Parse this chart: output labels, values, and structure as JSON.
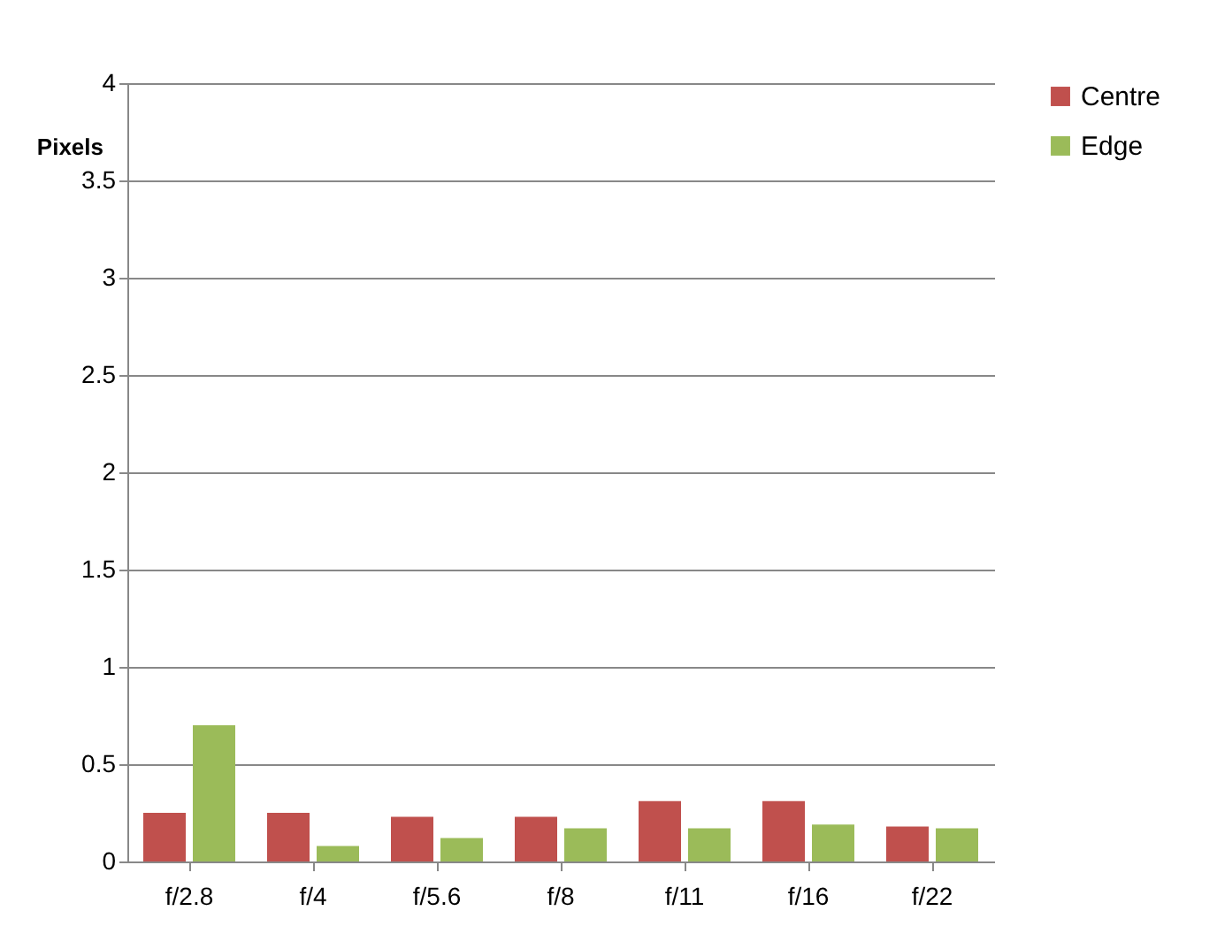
{
  "chart_data": {
    "type": "bar",
    "ylabel": "Pixels",
    "categories": [
      "f/2.8",
      "f/4",
      "f/5.6",
      "f/8",
      "f/11",
      "f/16",
      "f/22"
    ],
    "series": [
      {
        "name": "Centre",
        "color": "#c0504d",
        "values": [
          0.25,
          0.25,
          0.23,
          0.23,
          0.31,
          0.31,
          0.18
        ]
      },
      {
        "name": "Edge",
        "color": "#9bbb59",
        "values": [
          0.7,
          0.08,
          0.12,
          0.17,
          0.17,
          0.19,
          0.17
        ]
      }
    ],
    "ylim": [
      0,
      4
    ],
    "yticks": [
      0,
      0.5,
      1,
      1.5,
      2,
      2.5,
      3,
      3.5,
      4
    ],
    "grid": "y",
    "legend": "right"
  }
}
